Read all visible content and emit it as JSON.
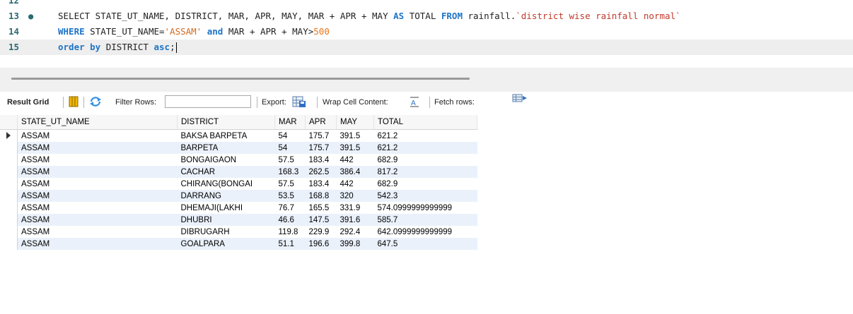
{
  "editor": {
    "lines": [
      {
        "num": "12",
        "bullet": false,
        "segments": []
      },
      {
        "num": "13",
        "bullet": true,
        "segments": [
          {
            "t": "SELECT STATE_UT_NAME, DISTRICT, MAR, APR, MAY, MAR + APR + MAY ",
            "c": "plain"
          },
          {
            "t": "AS",
            "c": "kw"
          },
          {
            "t": " TOTAL ",
            "c": "plain"
          },
          {
            "t": "FROM",
            "c": "kw"
          },
          {
            "t": " rainfall.",
            "c": "plain"
          },
          {
            "t": "`district wise rainfall normal`",
            "c": "tick"
          }
        ]
      },
      {
        "num": "14",
        "bullet": false,
        "segments": [
          {
            "t": "WHERE",
            "c": "kw"
          },
          {
            "t": " STATE_UT_NAME=",
            "c": "plain"
          },
          {
            "t": "'ASSAM'",
            "c": "str"
          },
          {
            "t": " ",
            "c": "plain"
          },
          {
            "t": "and",
            "c": "kw"
          },
          {
            "t": " MAR + APR + MAY>",
            "c": "plain"
          },
          {
            "t": "500",
            "c": "num"
          }
        ]
      },
      {
        "num": "15",
        "bullet": false,
        "current": true,
        "segments": [
          {
            "t": "order by",
            "c": "kw"
          },
          {
            "t": " DISTRICT ",
            "c": "plain"
          },
          {
            "t": "asc",
            "c": "kw"
          },
          {
            "t": ";",
            "c": "plain"
          }
        ]
      }
    ]
  },
  "toolbar": {
    "result_grid": "Result Grid",
    "filter_rows": "Filter Rows:",
    "filter_value": "",
    "export": "Export:",
    "wrap": "Wrap Cell Content:",
    "fetch": "Fetch rows:",
    "colors": {
      "accent": "#1e74c8",
      "icon_yellow": "#f2b600"
    }
  },
  "grid": {
    "columns": [
      "STATE_UT_NAME",
      "DISTRICT",
      "MAR",
      "APR",
      "MAY",
      "TOTAL"
    ],
    "rows": [
      [
        "ASSAM",
        "BAKSA BARPETA",
        "54",
        "175.7",
        "391.5",
        "621.2"
      ],
      [
        "ASSAM",
        "BARPETA",
        "54",
        "175.7",
        "391.5",
        "621.2"
      ],
      [
        "ASSAM",
        "BONGAIGAON",
        "57.5",
        "183.4",
        "442",
        "682.9"
      ],
      [
        "ASSAM",
        "CACHAR",
        "168.3",
        "262.5",
        "386.4",
        "817.2"
      ],
      [
        "ASSAM",
        "CHIRANG(BONGAI",
        "57.5",
        "183.4",
        "442",
        "682.9"
      ],
      [
        "ASSAM",
        "DARRANG",
        "53.5",
        "168.8",
        "320",
        "542.3"
      ],
      [
        "ASSAM",
        "DHEMAJI(LAKHI",
        "76.7",
        "165.5",
        "331.9",
        "574.0999999999999"
      ],
      [
        "ASSAM",
        "DHUBRI",
        "46.6",
        "147.5",
        "391.6",
        "585.7"
      ],
      [
        "ASSAM",
        "DIBRUGARH",
        "119.8",
        "229.9",
        "292.4",
        "642.0999999999999"
      ],
      [
        "ASSAM",
        "GOALPARA",
        "51.1",
        "196.6",
        "399.8",
        "647.5"
      ]
    ],
    "selected_row": 0
  }
}
